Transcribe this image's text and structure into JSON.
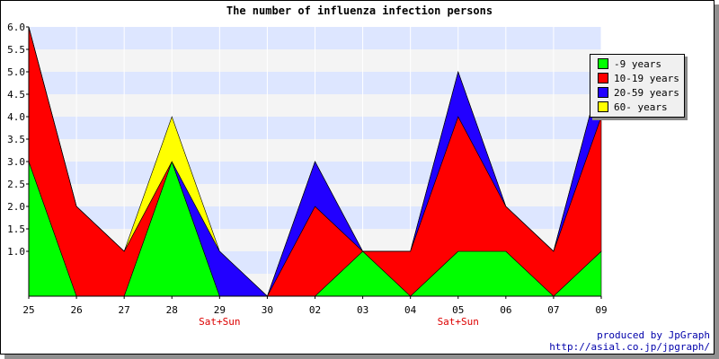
{
  "chart_data": {
    "type": "area",
    "stacked": true,
    "title": "The number of influenza infection persons",
    "categories": [
      "25",
      "26",
      "27",
      "28",
      "29",
      "30",
      "02",
      "03",
      "04",
      "05",
      "06",
      "07",
      "09"
    ],
    "sublabels": [
      "",
      "",
      "",
      "",
      "Sat+Sun",
      "",
      "",
      "",
      "",
      "Sat+Sun",
      "",
      "",
      ""
    ],
    "ylim": [
      0,
      6.0
    ],
    "yticks": [
      "1.0",
      "1.5",
      "2.0",
      "2.5",
      "3.0",
      "3.5",
      "4.0",
      "4.5",
      "5.0",
      "5.5",
      "6.0"
    ],
    "grid": true,
    "legend_position": "top-right",
    "series": [
      {
        "name": "-9 years",
        "color": "#00ff00",
        "values": [
          3,
          0,
          0,
          3,
          0,
          0,
          0,
          1,
          0,
          1,
          1,
          0,
          1
        ]
      },
      {
        "name": "10-19 years",
        "color": "#ff0000",
        "values": [
          3,
          2,
          1,
          0,
          0,
          0,
          2,
          0,
          1,
          3,
          1,
          1,
          3
        ]
      },
      {
        "name": "20-59 years",
        "color": "#2200ff",
        "values": [
          0,
          0,
          0,
          0,
          1,
          0,
          1,
          0,
          0,
          1,
          0,
          0,
          1
        ]
      },
      {
        "name": "60- years",
        "color": "#ffff00",
        "values": [
          0,
          0,
          0,
          1,
          0,
          0,
          0,
          0,
          0,
          0,
          0,
          0,
          0
        ]
      }
    ],
    "band_colors": [
      "#dde6ff",
      "#f4f4f4"
    ]
  },
  "credit": {
    "line1": "produced by JpGraph",
    "line2": "http://asial.co.jp/jpgraph/"
  }
}
